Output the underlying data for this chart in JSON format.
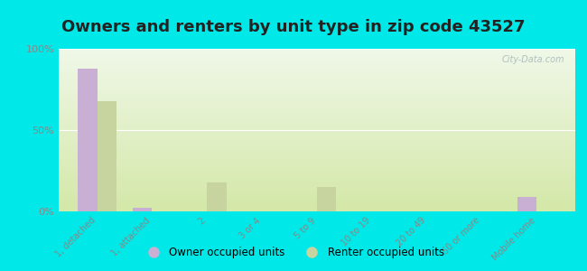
{
  "title": "Owners and renters by unit type in zip code 43527",
  "categories": [
    "1, detached",
    "1, attached",
    "2",
    "3 or 4",
    "5 to 9",
    "10 to 19",
    "20 to 49",
    "50 or more",
    "Mobile home"
  ],
  "owner_values": [
    88,
    2,
    0,
    0,
    0,
    0,
    0,
    0,
    9
  ],
  "renter_values": [
    68,
    0,
    18,
    0,
    15,
    0,
    0,
    0,
    0
  ],
  "owner_color": "#c9afd4",
  "renter_color": "#c8d49f",
  "background_color": "#00e8e8",
  "grad_color_top": "#d4e8a8",
  "grad_color_bottom": "#f0f8e8",
  "ytick_labels": [
    "0%",
    "50%",
    "100%"
  ],
  "ytick_vals": [
    0,
    50,
    100
  ],
  "ylim": [
    0,
    100
  ],
  "bar_width": 0.35,
  "title_fontsize": 13,
  "watermark": "City-Data.com",
  "legend_labels": [
    "Owner occupied units",
    "Renter occupied units"
  ],
  "tick_color": "#888888",
  "title_color": "#222222"
}
